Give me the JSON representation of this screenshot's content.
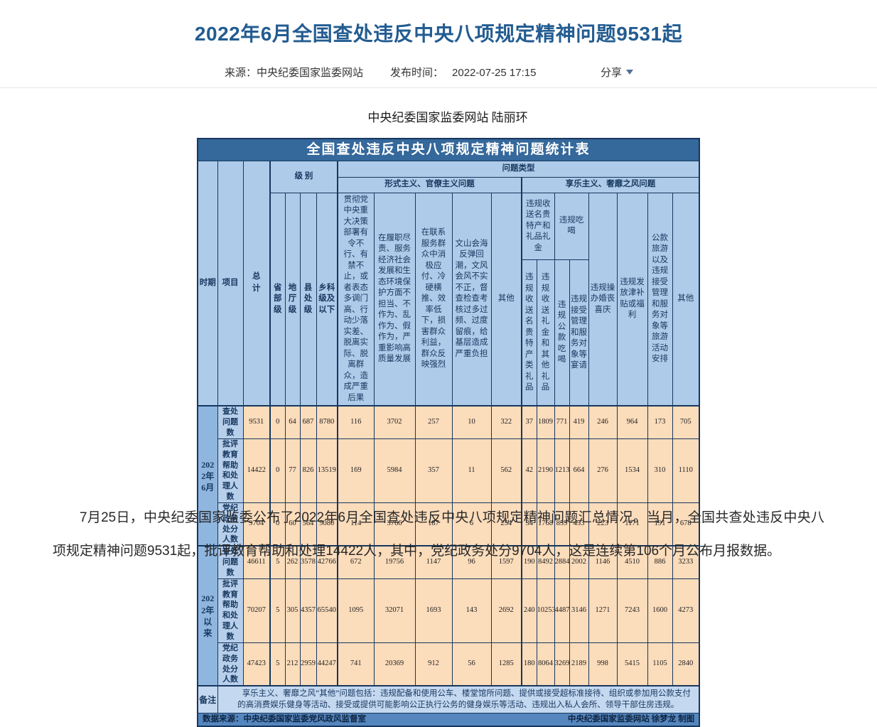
{
  "page": {
    "title": "2022年6月全国查处违反中央八项规定精神问题9531起",
    "meta": {
      "source_label": "来源：",
      "source": "中央纪委国家监委网站",
      "publish_label": "发布时间：",
      "publish_time": "2022-07-25 17:15",
      "share_label": "分享",
      "share_caret_icon": "caret-down"
    },
    "byline": "中央纪委国家监委网站 陆丽环",
    "body_paragraph": "7月25日，中央纪委国家监委公布了2022年6月全国查处违反中央八项规定精神问题汇总情况。当月，全国共查处违反中央八项规定精神问题9531起，批评教育帮助和处理14422人，其中，党纪政务处分9704人，这是连续第106个月公布月报数据。"
  },
  "table": {
    "title": "全国查处违反中央八项规定精神问题统计表",
    "headers": {
      "period": "时期",
      "item": "项目",
      "total": "总计",
      "level_group": "级 别",
      "problem_type_group": "问题类型",
      "levels": [
        "省部级",
        "地厅级",
        "县处级",
        "乡科级及以下"
      ],
      "formalism_group": "形式主义、官僚主义问题",
      "hedonism_group": "享乐主义、奢靡之风问题",
      "formalism_cols": [
        "贯彻党中央重大决策部署有令不行、有禁不止，或者表态多调门高、行动少落实差、脱离实际、脱离群众，造成严重后果",
        "在履职尽责、服务经济社会发展和生态环境保护方面不担当、不作为、乱作为、假作为，严重影响高质量发展",
        "在联系服务群众中消极应付、冷硬横推、效率低下，损害群众利益，群众反映强烈",
        "文山会海反弹回潮，文风会风不实不正，督查检查考核过多过频、过度留痕，给基层造成严重负担",
        "其他"
      ],
      "hedonism": {
        "gifts_group": "违规收送名贵特产和礼品礼金",
        "gifts_sub": [
          "违规收送名贵特产类礼品",
          "违规收送礼金和其他礼品"
        ],
        "dining_group": "违规吃喝",
        "dining_sub": [
          "违规公款吃喝",
          "违规接受管理和服务对象等宴请"
        ],
        "weddings": "违规操办婚丧喜庆",
        "allowances": "违规发放津补贴或福利",
        "travel": "公款旅游以及违规接受管理和服务对象等旅游活动安排",
        "other": "其他"
      }
    },
    "row_groups": [
      {
        "period": "2022年6月",
        "rows": [
          {
            "label": "查处问题数",
            "values": [
              9531,
              0,
              64,
              687,
              8780,
              116,
              3702,
              257,
              10,
              322,
              37,
              1809,
              771,
              419,
              246,
              964,
              173,
              705
            ]
          },
          {
            "label": "批评教育帮助和处理人数",
            "values": [
              14422,
              0,
              77,
              826,
              13519,
              169,
              5984,
              357,
              11,
              562,
              42,
              2190,
              1213,
              664,
              276,
              1534,
              310,
              1110
            ]
          },
          {
            "label": "党纪政务处分人数",
            "values": [
              9704,
              0,
              60,
              564,
              9080,
              114,
              3766,
              187,
              6,
              254,
              34,
              1768,
              859,
              453,
              223,
              1171,
              191,
              678
            ]
          }
        ]
      },
      {
        "period": "2022年以来",
        "rows": [
          {
            "label": "查处问题数",
            "values": [
              46611,
              5,
              262,
              3578,
              42766,
              672,
              19756,
              1147,
              96,
              1597,
              190,
              8492,
              2884,
              2002,
              1146,
              4510,
              886,
              3233
            ]
          },
          {
            "label": "批评教育帮助和处理人数",
            "values": [
              70207,
              5,
              305,
              4357,
              65540,
              1095,
              32071,
              1693,
              143,
              2692,
              240,
              10253,
              4487,
              3146,
              1271,
              7243,
              1600,
              4273
            ]
          },
          {
            "label": "党纪政务处分人数",
            "values": [
              47423,
              5,
              212,
              2959,
              44247,
              741,
              20369,
              912,
              56,
              1285,
              180,
              8064,
              3269,
              2189,
              998,
              5415,
              1105,
              2840
            ]
          }
        ]
      }
    ],
    "remark_label": "备注",
    "remark": "享乐主义、奢靡之风“其他”问题包括：违规配备和使用公车、楼堂馆所问题、提供或接受超标准接待、组织或参加用公款支付的高消费娱乐健身等活动、接受或提供可能影响公正执行公务的健身娱乐等活动、违规出入私人会所、领导干部住房违规。",
    "source_left": "数据来源：中央纪委国家监委党风政风监督室",
    "source_right": "中央纪委国家监委网站 徐梦龙 制图",
    "colors": {
      "title_bar": "#35689b",
      "header_blue": "#aecbe9",
      "period_blue": "#8fb6df",
      "label_blue": "#b7cfeb",
      "data_peach": "#fbdcbb",
      "remark_blue": "#c4d8f0",
      "footer_blue": "#5586be",
      "border_navy": "#17375e",
      "page_title_blue": "#235c91"
    }
  }
}
